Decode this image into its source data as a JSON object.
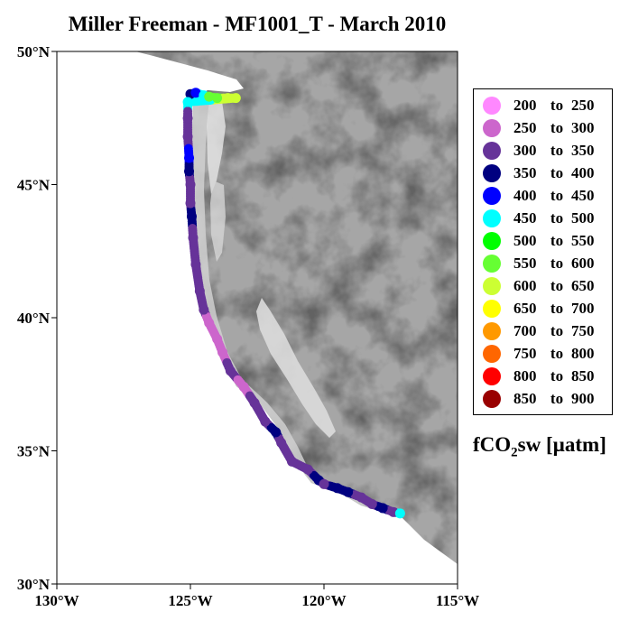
{
  "title": "Miller Freeman - MF1001_T - March 2010",
  "x_axis": {
    "ticks": [
      {
        "value": -130,
        "label": "130°W"
      },
      {
        "value": -125,
        "label": "125°W"
      },
      {
        "value": -120,
        "label": "120°W"
      },
      {
        "value": -115,
        "label": "115°W"
      }
    ]
  },
  "y_axis": {
    "ticks": [
      {
        "value": 30,
        "label": "30°N"
      },
      {
        "value": 35,
        "label": "35°N"
      },
      {
        "value": 40,
        "label": "40°N"
      },
      {
        "value": 45,
        "label": "45°N"
      },
      {
        "value": 50,
        "label": "50°N"
      }
    ]
  },
  "variable_label": {
    "main": "fCO",
    "sub": "2",
    "rest": "sw [µatm]"
  },
  "legend": [
    {
      "lo": "200",
      "to": "to",
      "hi": "250",
      "color": "#ff88ff"
    },
    {
      "lo": "250",
      "to": "to",
      "hi": "300",
      "color": "#cc66cc"
    },
    {
      "lo": "300",
      "to": "to",
      "hi": "350",
      "color": "#663399"
    },
    {
      "lo": "350",
      "to": "to",
      "hi": "400",
      "color": "#000080"
    },
    {
      "lo": "400",
      "to": "to",
      "hi": "450",
      "color": "#0000ff"
    },
    {
      "lo": "450",
      "to": "to",
      "hi": "500",
      "color": "#00ffff"
    },
    {
      "lo": "500",
      "to": "to",
      "hi": "550",
      "color": "#00ff00"
    },
    {
      "lo": "550",
      "to": "to",
      "hi": "600",
      "color": "#66ff33"
    },
    {
      "lo": "600",
      "to": "to",
      "hi": "650",
      "color": "#ccff33"
    },
    {
      "lo": "650",
      "to": "to",
      "hi": "700",
      "color": "#ffff00"
    },
    {
      "lo": "700",
      "to": "to",
      "hi": "750",
      "color": "#ff9900"
    },
    {
      "lo": "750",
      "to": "to",
      "hi": "800",
      "color": "#ff6600"
    },
    {
      "lo": "800",
      "to": "to",
      "hi": "850",
      "color": "#ff0000"
    },
    {
      "lo": "850",
      "to": "to",
      "hi": "900",
      "color": "#990000"
    }
  ],
  "map_extent": {
    "lon": [
      -130,
      -115
    ],
    "lat": [
      30,
      50
    ]
  },
  "cruise_track": [
    {
      "lon": -125.0,
      "lat": 48.4,
      "v": 380
    },
    {
      "lon": -124.8,
      "lat": 48.45,
      "v": 420
    },
    {
      "lon": -124.5,
      "lat": 48.35,
      "v": 470
    },
    {
      "lon": -124.3,
      "lat": 48.3,
      "v": 560
    },
    {
      "lon": -124.0,
      "lat": 48.25,
      "v": 590
    },
    {
      "lon": -123.6,
      "lat": 48.25,
      "v": 620
    },
    {
      "lon": -123.3,
      "lat": 48.25,
      "v": 630
    },
    {
      "lon": -125.1,
      "lat": 48.1,
      "v": 460
    },
    {
      "lon": -125.1,
      "lat": 47.5,
      "v": 330
    },
    {
      "lon": -125.1,
      "lat": 46.8,
      "v": 330
    },
    {
      "lon": -125.05,
      "lat": 46.0,
      "v": 410
    },
    {
      "lon": -125.05,
      "lat": 45.5,
      "v": 390
    },
    {
      "lon": -125.0,
      "lat": 45.0,
      "v": 340
    },
    {
      "lon": -125.0,
      "lat": 44.3,
      "v": 330
    },
    {
      "lon": -124.95,
      "lat": 43.8,
      "v": 380
    },
    {
      "lon": -124.9,
      "lat": 43.0,
      "v": 330
    },
    {
      "lon": -124.8,
      "lat": 42.0,
      "v": 330
    },
    {
      "lon": -124.65,
      "lat": 41.0,
      "v": 330
    },
    {
      "lon": -124.5,
      "lat": 40.3,
      "v": 330
    },
    {
      "lon": -124.3,
      "lat": 39.8,
      "v": 290
    },
    {
      "lon": -124.0,
      "lat": 39.2,
      "v": 280
    },
    {
      "lon": -123.8,
      "lat": 38.7,
      "v": 260
    },
    {
      "lon": -123.5,
      "lat": 38.0,
      "v": 330
    },
    {
      "lon": -123.0,
      "lat": 37.4,
      "v": 250
    },
    {
      "lon": -122.6,
      "lat": 36.8,
      "v": 320
    },
    {
      "lon": -122.2,
      "lat": 36.1,
      "v": 300
    },
    {
      "lon": -121.8,
      "lat": 35.7,
      "v": 370
    },
    {
      "lon": -121.6,
      "lat": 35.3,
      "v": 310
    },
    {
      "lon": -121.2,
      "lat": 34.6,
      "v": 330
    },
    {
      "lon": -120.6,
      "lat": 34.3,
      "v": 310
    },
    {
      "lon": -120.2,
      "lat": 33.9,
      "v": 370
    },
    {
      "lon": -120.0,
      "lat": 33.75,
      "v": 330
    },
    {
      "lon": -119.5,
      "lat": 33.6,
      "v": 380
    },
    {
      "lon": -119.1,
      "lat": 33.45,
      "v": 370
    },
    {
      "lon": -118.6,
      "lat": 33.25,
      "v": 320
    },
    {
      "lon": -118.2,
      "lat": 33.0,
      "v": 300
    },
    {
      "lon": -117.8,
      "lat": 32.85,
      "v": 380
    },
    {
      "lon": -117.4,
      "lat": 32.7,
      "v": 320
    },
    {
      "lon": -117.15,
      "lat": 32.65,
      "v": 470
    }
  ]
}
